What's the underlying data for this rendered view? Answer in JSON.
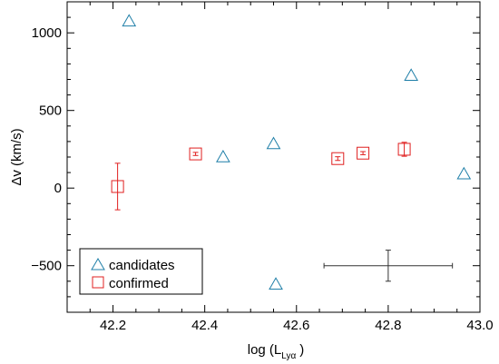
{
  "chart_data": {
    "type": "scatter",
    "xlabel": {
      "prefix": "log (L",
      "subscript": "Lyα",
      "suffix": ")"
    },
    "ylabel": "Δv (km/s)",
    "xlim": [
      42.1,
      43.0
    ],
    "ylim": [
      -800,
      1200
    ],
    "x_ticks": [
      42.2,
      42.4,
      42.6,
      42.8,
      43.0
    ],
    "x_tick_labels": [
      "42.2",
      "42.4",
      "42.6",
      "42.8",
      "43.0"
    ],
    "y_ticks": [
      -500,
      0,
      500,
      1000
    ],
    "y_tick_labels": [
      "−500",
      "0",
      "500",
      "1000"
    ],
    "legend_placement": "bottom-left",
    "series": [
      {
        "name": "candidates",
        "marker": "triangle",
        "color": "#1f7fa8",
        "points": [
          {
            "x": 42.235,
            "y": 1075
          },
          {
            "x": 42.44,
            "y": 200
          },
          {
            "x": 42.55,
            "y": 285
          },
          {
            "x": 42.555,
            "y": -620
          },
          {
            "x": 42.85,
            "y": 725
          },
          {
            "x": 42.965,
            "y": 90
          }
        ]
      },
      {
        "name": "confirmed",
        "marker": "square",
        "color": "#e02020",
        "points": [
          {
            "x": 42.21,
            "y": 10,
            "yerr": 150
          },
          {
            "x": 42.38,
            "y": 220,
            "yerr": 10
          },
          {
            "x": 42.69,
            "y": 190,
            "yerr": 12
          },
          {
            "x": 42.745,
            "y": 225,
            "yerr": 10
          },
          {
            "x": 42.835,
            "y": 250,
            "yerr": 45
          }
        ]
      }
    ],
    "representative_error": {
      "x": 42.8,
      "y": -500,
      "xerr": 0.14,
      "yerr": 100,
      "color": "#333333"
    }
  }
}
